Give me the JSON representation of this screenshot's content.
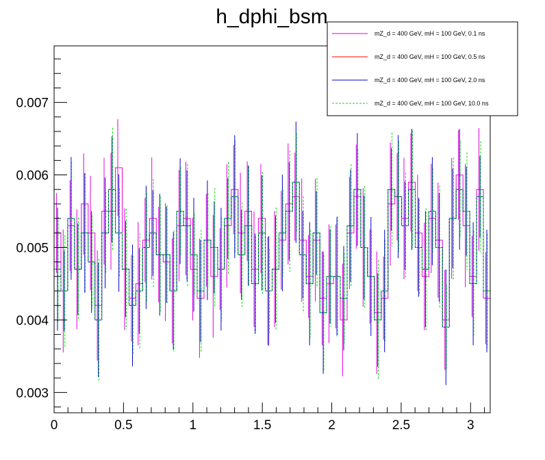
{
  "chart_data": {
    "type": "line",
    "title": "h_dphi_bsm",
    "xlabel": "",
    "ylabel": "",
    "xlim": [
      0,
      3.14159
    ],
    "ylim": [
      0.00272,
      0.00778
    ],
    "x_ticks": [
      {
        "value": 0,
        "label": "0"
      },
      {
        "value": 0.5,
        "label": "0.5"
      },
      {
        "value": 1,
        "label": "1"
      },
      {
        "value": 1.5,
        "label": "1.5"
      },
      {
        "value": 2,
        "label": "2"
      },
      {
        "value": 2.5,
        "label": "2.5"
      },
      {
        "value": 3,
        "label": "3"
      }
    ],
    "y_ticks": [
      {
        "value": 0.003,
        "label": "0.003"
      },
      {
        "value": 0.004,
        "label": "0.004"
      },
      {
        "value": 0.005,
        "label": "0.005"
      },
      {
        "value": 0.006,
        "label": "0.006"
      },
      {
        "value": 0.007,
        "label": "0.007"
      }
    ],
    "bins": {
      "count": 64,
      "low": 0,
      "high": 3.14159
    },
    "legend_position": "top-right",
    "grid": false,
    "series": [
      {
        "name": "mZ_d = 400 GeV, mH = 100 GeV, 0.1 ns",
        "color": "#e000e0",
        "style": "solid",
        "values": [
          0.0052,
          0.0044,
          0.0053,
          0.0047,
          0.0056,
          0.0052,
          0.0042,
          0.0055,
          0.0055,
          0.0061,
          0.0047,
          0.0043,
          0.0045,
          0.0051,
          0.0054,
          0.0049,
          0.0048,
          0.0044,
          0.0053,
          0.0054,
          0.0047,
          0.0043,
          0.0051,
          0.0046,
          0.0047,
          0.0053,
          0.0058,
          0.0052,
          0.0055,
          0.0047,
          0.0054,
          0.0044,
          0.0047,
          0.0051,
          0.0056,
          0.0057,
          0.0051,
          0.0046,
          0.0051,
          0.0043,
          0.0045,
          0.0046,
          0.004,
          0.0052,
          0.0057,
          0.005,
          0.0046,
          0.0041,
          0.0043,
          0.0056,
          0.0057,
          0.0054,
          0.0059,
          0.0052,
          0.0046,
          0.0054,
          0.0051,
          0.004,
          0.0054,
          0.006,
          0.0053,
          0.0046,
          0.0058,
          0.0043
        ]
      },
      {
        "name": "mZ_d = 400 GeV, mH = 100 GeV, 0.5 ns",
        "color": "#ff0000",
        "style": "solid",
        "values": []
      },
      {
        "name": "mZ_d = 400 GeV, mH = 100 GeV, 2.0 ns",
        "color": "#0000cc",
        "style": "solid",
        "values": [
          0.0047,
          0.0044,
          0.0054,
          0.0047,
          0.0052,
          0.0048,
          0.004,
          0.0052,
          0.0058,
          0.0052,
          0.0047,
          0.0042,
          0.0044,
          0.005,
          0.0052,
          0.0049,
          0.0049,
          0.0044,
          0.0055,
          0.0053,
          0.0049,
          0.0044,
          0.0051,
          0.005,
          0.0047,
          0.0054,
          0.0057,
          0.0049,
          0.0053,
          0.0045,
          0.0052,
          0.0044,
          0.0047,
          0.0052,
          0.0055,
          0.0059,
          0.0049,
          0.0045,
          0.0052,
          0.0041,
          0.0046,
          0.0046,
          0.0043,
          0.0053,
          0.0058,
          0.005,
          0.0046,
          0.004,
          0.0044,
          0.0058,
          0.0057,
          0.0053,
          0.0058,
          0.005,
          0.0047,
          0.0055,
          0.005,
          0.0039,
          0.0054,
          0.0058,
          0.0055,
          0.0045,
          0.0057,
          0.0044
        ]
      },
      {
        "name": "mZ_d = 400 GeV, mH = 100 GeV, 10.0 ns",
        "color": "#00dd00",
        "style": "dashed",
        "values": [
          0.0047,
          0.0044,
          0.0054,
          0.0047,
          0.0052,
          0.0048,
          0.004,
          0.0052,
          0.0058,
          0.0052,
          0.0047,
          0.0042,
          0.0044,
          0.005,
          0.0052,
          0.0049,
          0.0049,
          0.0044,
          0.0055,
          0.0053,
          0.0049,
          0.0044,
          0.0051,
          0.005,
          0.0047,
          0.0054,
          0.0057,
          0.0049,
          0.0053,
          0.0045,
          0.0052,
          0.0044,
          0.0047,
          0.0052,
          0.0055,
          0.0059,
          0.0049,
          0.0045,
          0.0052,
          0.0041,
          0.0046,
          0.0046,
          0.0043,
          0.0053,
          0.0058,
          0.005,
          0.0046,
          0.004,
          0.0044,
          0.0058,
          0.0057,
          0.0053,
          0.0058,
          0.005,
          0.0047,
          0.0055,
          0.005,
          0.0039,
          0.0054,
          0.0058,
          0.0055,
          0.0045,
          0.0057,
          0.0044
        ]
      }
    ]
  }
}
